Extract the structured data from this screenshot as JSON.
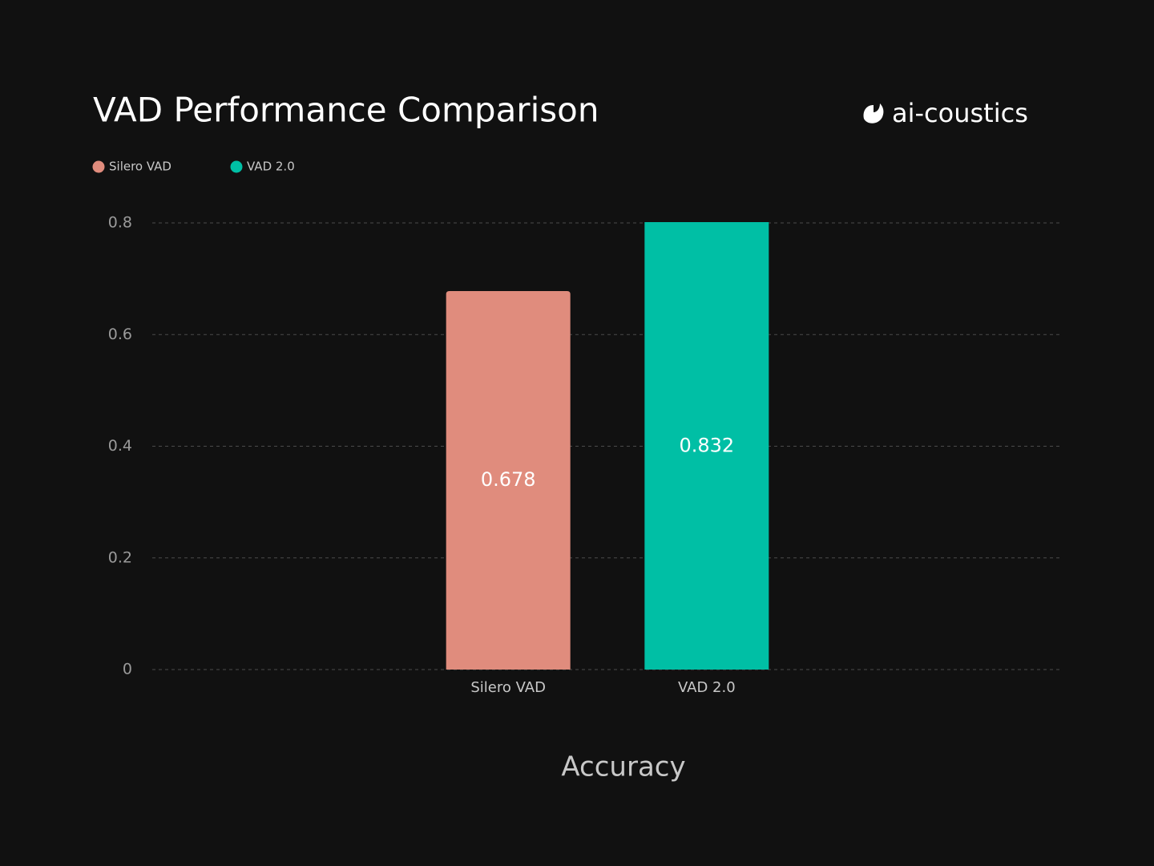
{
  "chart_data": {
    "type": "bar",
    "title": "VAD Performance Comparison",
    "brand": "ai-coustics",
    "categories": [
      "Silero VAD",
      "VAD 2.0"
    ],
    "values": [
      0.678,
      0.832
    ],
    "colors": [
      "#e08c7d",
      "#00bfa5"
    ],
    "x_label": "Accuracy",
    "ylim": [
      0,
      0.8
    ],
    "yticks": [
      0,
      0.2,
      0.4,
      0.6,
      0.8
    ],
    "grid": true,
    "legend": "top-left"
  }
}
